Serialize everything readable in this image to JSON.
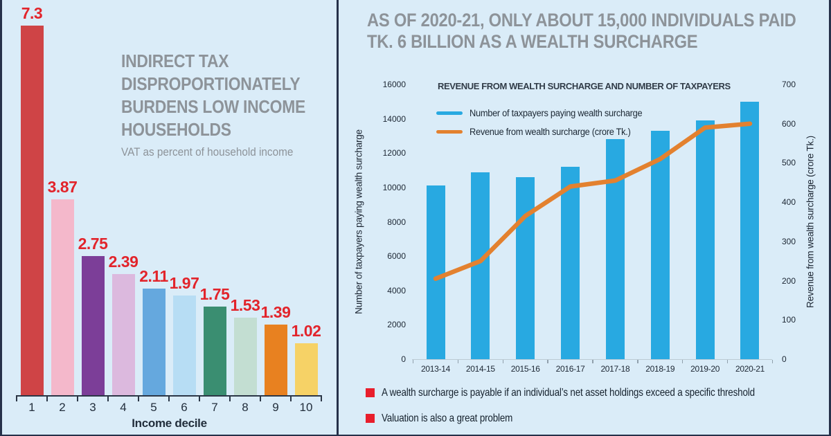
{
  "page": {
    "background": "#daecf8",
    "frame_color": "#26314a"
  },
  "left_panel": {
    "title_lines": [
      "INDIRECT TAX",
      "DISPROPORTIONATELY",
      "BURDENS LOW INCOME",
      "HOUSEHOLDS"
    ],
    "subtitle": "VAT as percent of household income",
    "xlabel": "Income decile"
  },
  "right_panel": {
    "title_lines": [
      "AS OF 2020-21, ONLY ABOUT 15,000 INDIVIDUALS PAID",
      "TK. 6 BILLION AS A WEALTH SURCHARGE"
    ],
    "bullets": [
      "A wealth surcharge is payable if an individual’s net asset holdings exceed a specific threshold",
      "Valuation is also a great problem"
    ],
    "bullet_color": "#e81e2c"
  },
  "chart_data": [
    {
      "id": "vat-by-income-decile",
      "type": "bar",
      "title": "INDIRECT TAX DISPROPORTIONATELY BURDENS LOW INCOME HOUSEHOLDS",
      "subtitle": "VAT as percent of household income",
      "xlabel": "Income decile",
      "ylabel": "",
      "categories": [
        "1",
        "2",
        "3",
        "4",
        "5",
        "6",
        "7",
        "8",
        "9",
        "10"
      ],
      "values": [
        7.3,
        3.87,
        2.75,
        2.39,
        2.11,
        1.97,
        1.75,
        1.53,
        1.39,
        1.02
      ],
      "bar_colors": [
        "#cf4446",
        "#f4b8cb",
        "#7c3e98",
        "#dcb9de",
        "#65a8de",
        "#b7ddf4",
        "#3a8e71",
        "#c3ded2",
        "#e88120",
        "#f6d266"
      ],
      "value_label_color": "#e2242b",
      "ylim": [
        0,
        7.3
      ],
      "grid": false,
      "legend_position": "none"
    },
    {
      "id": "wealth-surcharge-revenue-taxpayers",
      "type": "bar+line",
      "title": "REVENUE FROM WEALTH SURCHARGE AND NUMBER OF TAXPAYERS",
      "categories": [
        "2013-14",
        "2014-15",
        "2015-16",
        "2016-17",
        "2017-18",
        "2018-19",
        "2019-20",
        "2020-21"
      ],
      "series": [
        {
          "name": "Number of taxpayers paying wealth surcharge",
          "type": "bar",
          "axis": "left",
          "color": "#28a9e1",
          "values": [
            10100,
            10900,
            10600,
            11200,
            12800,
            13300,
            13900,
            15000
          ]
        },
        {
          "name": "Revenue from wealth surcharge (crore Tk.)",
          "type": "line",
          "axis": "right",
          "color": "#e3812f",
          "values": [
            205,
            250,
            365,
            440,
            455,
            510,
            590,
            600
          ]
        }
      ],
      "left_axis": {
        "label": "Number of taxpayers paying wealth surcharge",
        "ticks": [
          0,
          2000,
          4000,
          6000,
          8000,
          10000,
          12000,
          14000,
          16000
        ],
        "range": [
          0,
          16000
        ]
      },
      "right_axis": {
        "label": "Revenue from wealth surcharge (crore Tk.)",
        "ticks": [
          0,
          100,
          200,
          300,
          400,
          500,
          600,
          700
        ],
        "range": [
          0,
          700
        ]
      },
      "grid": false,
      "legend_position": "top-left"
    }
  ]
}
